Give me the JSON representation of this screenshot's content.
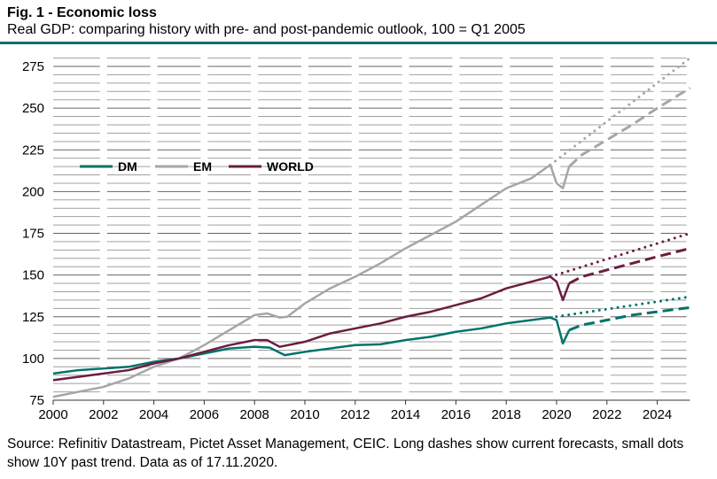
{
  "header": {
    "title": "Fig. 1 - Economic loss",
    "subtitle": "Real GDP: comparing history with pre- and post-pandemic outlook, 100 = Q1 2005"
  },
  "footer": {
    "source": "Source: Refinitiv Datastream, Pictet Asset Management, CEIC. Long dashes show current forecasts, small dots show 10Y past trend. Data as of 17.11.2020."
  },
  "chart_data": {
    "type": "line",
    "xlim": [
      2000,
      2025.3
    ],
    "ylim": [
      75,
      280
    ],
    "xticks": [
      "2000",
      "2002",
      "2004",
      "2006",
      "2008",
      "2010",
      "2012",
      "2014",
      "2016",
      "2018",
      "2020",
      "2022",
      "2024"
    ],
    "yticks": [
      "75",
      "100",
      "125",
      "150",
      "175",
      "200",
      "225",
      "250",
      "275"
    ],
    "grid": true,
    "legend": "top-left",
    "series": [
      {
        "name": "DM",
        "color": "#00736b",
        "history": [
          [
            2000,
            91
          ],
          [
            2001,
            93
          ],
          [
            2002,
            94
          ],
          [
            2003,
            95
          ],
          [
            2004,
            98
          ],
          [
            2005,
            100
          ],
          [
            2006,
            103
          ],
          [
            2007,
            106
          ],
          [
            2008,
            107
          ],
          [
            2008.6,
            106.5
          ],
          [
            2009.2,
            102
          ],
          [
            2010,
            104
          ],
          [
            2011,
            106
          ],
          [
            2012,
            108
          ],
          [
            2013,
            108.5
          ],
          [
            2014,
            111
          ],
          [
            2015,
            113
          ],
          [
            2016,
            116
          ],
          [
            2017,
            118
          ],
          [
            2018,
            121
          ],
          [
            2019,
            123
          ],
          [
            2019.75,
            124.5
          ],
          [
            2020,
            123
          ],
          [
            2020.25,
            109
          ],
          [
            2020.5,
            117
          ]
        ],
        "forecast": [
          [
            2020.5,
            117
          ],
          [
            2021,
            120
          ],
          [
            2022,
            123
          ],
          [
            2023,
            126
          ],
          [
            2024,
            128
          ],
          [
            2025.3,
            130.5
          ]
        ],
        "trend": [
          [
            2019.75,
            124.5
          ],
          [
            2025.3,
            137
          ]
        ]
      },
      {
        "name": "EM",
        "color": "#a6a6a6",
        "history": [
          [
            2000,
            77
          ],
          [
            2001,
            80
          ],
          [
            2002,
            83
          ],
          [
            2003,
            88
          ],
          [
            2004,
            95
          ],
          [
            2005,
            100
          ],
          [
            2006,
            108
          ],
          [
            2007,
            117
          ],
          [
            2008,
            126
          ],
          [
            2008.5,
            127
          ],
          [
            2009,
            124.5
          ],
          [
            2009.3,
            125
          ],
          [
            2010,
            133
          ],
          [
            2011,
            142
          ],
          [
            2012,
            149
          ],
          [
            2013,
            157
          ],
          [
            2014,
            166
          ],
          [
            2015,
            174
          ],
          [
            2016,
            182
          ],
          [
            2017,
            192
          ],
          [
            2018,
            202
          ],
          [
            2019,
            208
          ],
          [
            2019.75,
            216
          ],
          [
            2020,
            205
          ],
          [
            2020.25,
            202
          ],
          [
            2020.5,
            215
          ]
        ],
        "forecast": [
          [
            2020.5,
            215
          ],
          [
            2021,
            222
          ],
          [
            2022,
            231
          ],
          [
            2023,
            240
          ],
          [
            2024,
            250
          ],
          [
            2025.3,
            262
          ]
        ],
        "trend": [
          [
            2019.75,
            216
          ],
          [
            2025.3,
            280
          ]
        ]
      },
      {
        "name": "WORLD",
        "color": "#6b1d40",
        "history": [
          [
            2000,
            87
          ],
          [
            2001,
            89
          ],
          [
            2002,
            91
          ],
          [
            2003,
            93
          ],
          [
            2004,
            97
          ],
          [
            2005,
            100
          ],
          [
            2006,
            104
          ],
          [
            2007,
            108
          ],
          [
            2008,
            111
          ],
          [
            2008.5,
            111
          ],
          [
            2009,
            107
          ],
          [
            2010,
            110
          ],
          [
            2011,
            115
          ],
          [
            2012,
            118
          ],
          [
            2013,
            121
          ],
          [
            2014,
            125
          ],
          [
            2015,
            128
          ],
          [
            2016,
            132
          ],
          [
            2017,
            136
          ],
          [
            2018,
            142
          ],
          [
            2019,
            146
          ],
          [
            2019.75,
            149
          ],
          [
            2020,
            146
          ],
          [
            2020.25,
            135
          ],
          [
            2020.5,
            145
          ]
        ],
        "forecast": [
          [
            2020.5,
            145
          ],
          [
            2021,
            149
          ],
          [
            2022,
            153
          ],
          [
            2023,
            157
          ],
          [
            2024,
            161
          ],
          [
            2025.3,
            166
          ]
        ],
        "trend": [
          [
            2019.75,
            149
          ],
          [
            2025.3,
            175
          ]
        ]
      }
    ]
  }
}
